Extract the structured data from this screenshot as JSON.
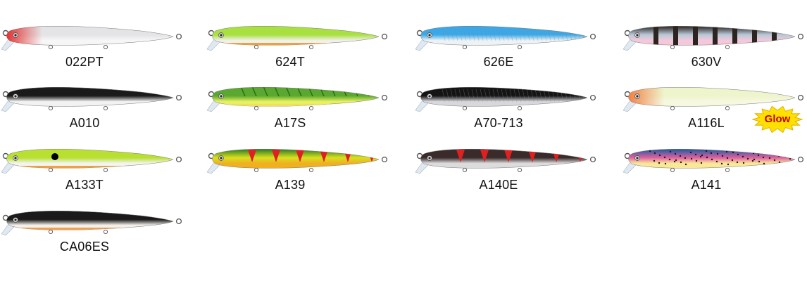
{
  "colors": {
    "background": "#ffffff",
    "label_text": "#111111",
    "glow_badge_fill": "#ffe000",
    "glow_badge_text": "#c40000"
  },
  "lures": [
    {
      "code": "022PT",
      "icon": "lure-022pt-icon",
      "back": "#e4e4e6",
      "belly": "#f6f6f6",
      "head": "#e01010",
      "pattern": "redhead"
    },
    {
      "code": "624T",
      "icon": "lure-624t-icon",
      "back": "#a8e040",
      "belly": "#f2f0ea",
      "head": "#9ad030",
      "pattern": "plain",
      "stripe": "#f0a040"
    },
    {
      "code": "626E",
      "icon": "lure-626e-icon",
      "back": "#3aa8e8",
      "belly": "#eef2f4",
      "head": "#3aa8e8",
      "pattern": "lined"
    },
    {
      "code": "630V",
      "icon": "lure-630v-icon",
      "back": "#2b2420",
      "belly": "#f4c8d8",
      "head": "#2b2420",
      "pattern": "bars",
      "mid": "#b8c8d8"
    },
    {
      "code": "A010",
      "icon": "lure-a010-icon",
      "back": "#1a1a1a",
      "belly": "#f2f2f2",
      "head": "#2a2a2a",
      "pattern": "plain"
    },
    {
      "code": "A17S",
      "icon": "lure-a17s-icon",
      "back": "#5aa830",
      "belly": "#e8f060",
      "head": "#9ad040",
      "pattern": "tiger",
      "stripe": "#f0e060"
    },
    {
      "code": "A70-713",
      "icon": "lure-a70-713-icon",
      "back": "#141414",
      "belly": "#d8d8dc",
      "head": "#1a1a1a",
      "pattern": "lined"
    },
    {
      "code": "A116L",
      "icon": "lure-a116l-icon",
      "back": "#eef4cc",
      "belly": "#f6f8e0",
      "head": "#f06a2a",
      "pattern": "redhead"
    },
    {
      "code": "A133T",
      "icon": "lure-a133t-icon",
      "back": "#b8e030",
      "belly": "#f4f4f0",
      "head": "#40d040",
      "pattern": "eyespot",
      "stripe": "#f0a040"
    },
    {
      "code": "A139",
      "icon": "lure-a139-icon",
      "back": "#2a7a20",
      "belly": "#f0b020",
      "head": "#3a8a20",
      "pattern": "redtri",
      "mid": "#d8e020"
    },
    {
      "code": "A140E",
      "icon": "lure-a140e-icon",
      "back": "#3a2a2a",
      "belly": "#dcdcdc",
      "head": "#3a2a2a",
      "pattern": "redtri"
    },
    {
      "code": "A141",
      "icon": "lure-a141-icon",
      "back": "#1a5aa0",
      "belly": "#f8e898",
      "head": "#3aa0e0",
      "pattern": "speckle",
      "mid": "#e060a0"
    },
    {
      "code": "CA06ES",
      "icon": "lure-ca06es-icon",
      "back": "#1a1a1a",
      "belly": "#f4f0ea",
      "head": "#1a1a1a",
      "pattern": "plain",
      "stripe": "#f0a050"
    }
  ],
  "glow_badge": {
    "text": "Glow"
  }
}
